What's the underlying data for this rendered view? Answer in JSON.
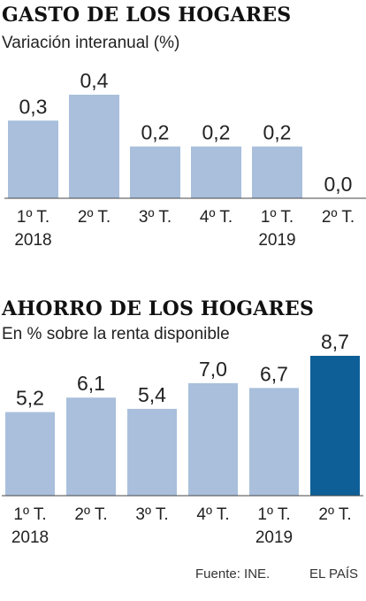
{
  "colors": {
    "bar": "#a9bfdc",
    "highlight": "#0e5f97",
    "baseline": "#444444"
  },
  "chart_data": [
    {
      "type": "bar",
      "title": "GASTO DE LOS HOGARES",
      "subtitle": "Variación interanual (%)",
      "categories": [
        "1º T. 2018",
        "2º T.",
        "3º T.",
        "4º T.",
        "1º T. 2019",
        "2º T."
      ],
      "tick_lines": [
        [
          "1º T.",
          "2018"
        ],
        [
          "2º T."
        ],
        [
          "3º T."
        ],
        [
          "4º T."
        ],
        [
          "1º T.",
          "2019"
        ],
        [
          "2º T."
        ]
      ],
      "values": [
        0.3,
        0.4,
        0.2,
        0.2,
        0.2,
        0.0
      ],
      "value_labels": [
        "0,3",
        "0,4",
        "0,2",
        "0,2",
        "0,2",
        "0,0"
      ],
      "highlight_index": null,
      "ylim": [
        0,
        0.4
      ]
    },
    {
      "type": "bar",
      "title": "AHORRO DE LOS HOGARES",
      "subtitle": "En % sobre la renta disponible",
      "categories": [
        "1º T. 2018",
        "2º T.",
        "3º T.",
        "4º T.",
        "1º T. 2019",
        "2º T."
      ],
      "tick_lines": [
        [
          "1º T.",
          "2018"
        ],
        [
          "2º T."
        ],
        [
          "3º T."
        ],
        [
          "4º T."
        ],
        [
          "1º T.",
          "2019"
        ],
        [
          "2º T."
        ]
      ],
      "values": [
        5.2,
        6.1,
        5.4,
        7.0,
        6.7,
        8.7
      ],
      "value_labels": [
        "5,2",
        "6,1",
        "5,4",
        "7,0",
        "6,7",
        "8,7"
      ],
      "highlight_index": 5,
      "ylim": [
        0,
        8.7
      ]
    }
  ],
  "footer": {
    "source": "Fuente: INE.",
    "brand": "EL PAÍS"
  }
}
